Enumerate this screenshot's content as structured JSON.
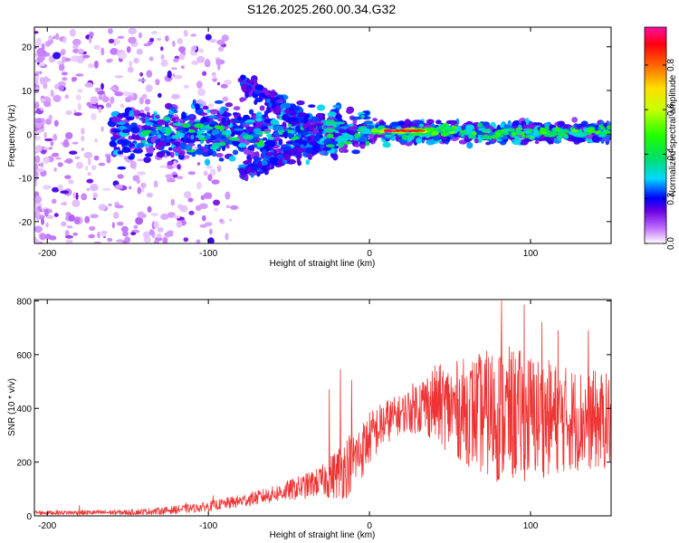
{
  "title": "S126.2025.260.00.34.G32",
  "chart_data": [
    {
      "type": "heatmap",
      "title": "S126.2025.260.00.34.G32",
      "xlabel": "Height of straight line (km)",
      "ylabel": "Frequency (Hz)",
      "xlim": [
        -208,
        150
      ],
      "ylim": [
        -25,
        24.5
      ],
      "x_ticks": [
        -200,
        -100,
        0,
        100
      ],
      "x_tick_labels": [
        "-200",
        "-100",
        "0",
        "100"
      ],
      "y_ticks": [
        -20,
        -10,
        0,
        10,
        20
      ],
      "y_tick_labels": [
        "-20",
        "-10",
        "0",
        "10",
        "20"
      ],
      "colorbar": {
        "label": "Normalized spectral amplitude",
        "range": [
          0,
          0.97
        ],
        "ticks": [
          0.0,
          0.2,
          0.4,
          0.6,
          0.8
        ],
        "tick_labels": [
          "0.0",
          "0.2",
          "0.4",
          "0.6",
          "0.8"
        ]
      },
      "features": [
        {
          "name": "diffuse-scatter",
          "x_range": [
            -208,
            -100
          ],
          "freq_range": [
            -25,
            24
          ],
          "amplitude": 0.05
        },
        {
          "name": "main-band",
          "x_range": [
            -160,
            150
          ],
          "freq_center": 0.5,
          "amplitude": 0.25
        },
        {
          "name": "arc-feature",
          "x_range": [
            -80,
            -30
          ],
          "freq_range": [
            -10,
            13
          ],
          "amplitude": 0.2
        },
        {
          "name": "peak-streak",
          "x_range": [
            8,
            35
          ],
          "freq_center": 0.8,
          "amplitude": 0.95
        }
      ]
    },
    {
      "type": "line",
      "xlabel": "Height of straight line (km)",
      "ylabel": "SNR (10 * v/v)",
      "xlim": [
        -208,
        150
      ],
      "ylim": [
        0,
        805
      ],
      "x_ticks": [
        -200,
        -100,
        0,
        100
      ],
      "x_tick_labels": [
        "-200",
        "-100",
        "0",
        "100"
      ],
      "y_ticks": [
        0,
        200,
        400,
        600,
        800
      ],
      "y_tick_labels": [
        "0",
        "200",
        "400",
        "600",
        "800"
      ],
      "color": "#ee3333",
      "series": [
        {
          "name": "snr-baseline",
          "x": [
            -208,
            -180,
            -150,
            -130,
            -110,
            -100,
            -80,
            -60,
            -40,
            -25,
            -15,
            -5,
            0,
            10,
            20,
            30,
            40,
            50,
            60,
            70,
            80,
            90,
            100,
            110,
            120,
            130,
            140,
            150
          ],
          "values": [
            12,
            12,
            13,
            18,
            28,
            35,
            55,
            80,
            110,
            140,
            180,
            240,
            290,
            350,
            380,
            410,
            420,
            400,
            390,
            380,
            380,
            375,
            370,
            365,
            360,
            360,
            355,
            350
          ]
        },
        {
          "name": "snr-noise-amplitude",
          "x": [
            -208,
            -150,
            -100,
            -60,
            -30,
            -15,
            0,
            20,
            40,
            60,
            80,
            100,
            120,
            150
          ],
          "values": [
            8,
            10,
            18,
            30,
            55,
            120,
            100,
            70,
            140,
            200,
            260,
            240,
            200,
            180
          ]
        },
        {
          "name": "snr-spikes",
          "x": [
            -180,
            -114,
            -97,
            -25,
            -18,
            -11,
            82,
            96,
            107,
            117,
            136
          ],
          "values": [
            38,
            48,
            75,
            470,
            545,
            505,
            800,
            785,
            720,
            690,
            690
          ]
        }
      ]
    }
  ]
}
